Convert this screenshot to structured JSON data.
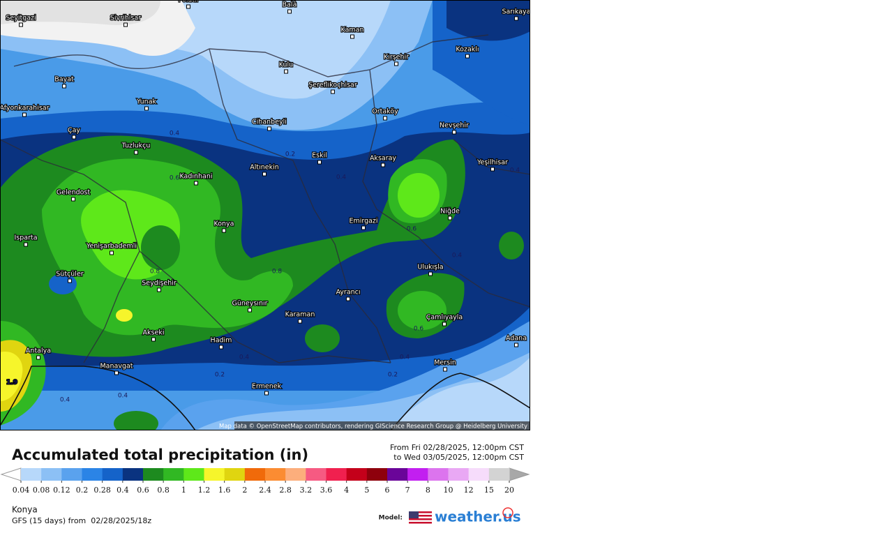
{
  "map": {
    "cities": [
      "Polatlı",
      "Balâ",
      "Sarıkaya",
      "Seyitgazi",
      "Sivrihisar",
      "Kaman",
      "Kozaklı",
      "Kırşehir",
      "Kulu",
      "Bayat",
      "Şereflikoçhisar",
      "Yunak",
      "Afyonkarahisar",
      "Ortaköy",
      "Cihanbeyli",
      "Nevşehir",
      "Çay",
      "Tuzlukçu",
      "Eskil",
      "Aksaray",
      "Yeşilhisar",
      "Altınekin",
      "Kadınhani",
      "Gelendost",
      "Konya",
      "Emirgazi",
      "Niğde",
      "Isparta",
      "Yenişarbademli",
      "Ulukışla",
      "Sütçüler",
      "Seydişehir",
      "Güneysınır",
      "Ayrancı",
      "Karaman",
      "Çamlıyayla",
      "Akseki",
      "Hadim",
      "Antalya",
      "Manavgat",
      "Adana",
      "Mersin",
      "Ermenek"
    ],
    "contour_labels": [
      "0.4",
      "0.2",
      "0.4",
      "0.6",
      "0.6",
      "0.8",
      "0.8",
      "0.4",
      "0.6",
      "0.4",
      "0.4",
      "0.2",
      "0.2",
      "0.4",
      "0.4",
      "0.4",
      "1.9"
    ],
    "attribution": "Map data © OpenStreetMap contributors, rendering GIScience Research Group @ Heidelberg University"
  },
  "legend": {
    "title": "Accumulated total precipitation (in)",
    "from": "From Fri 02/28/2025, 12:00pm CST",
    "to": "to Wed 03/05/2025, 12:00pm CST",
    "ticks": [
      0.04,
      0.08,
      0.12,
      0.2,
      0.28,
      0.4,
      0.6,
      0.8,
      1,
      1.2,
      1.6,
      2,
      2.4,
      2.8,
      3.2,
      3.6,
      4,
      5,
      6,
      7,
      8,
      10,
      12,
      15,
      20
    ],
    "colors": [
      "#b7d8fa",
      "#8cc0f5",
      "#5aa2ee",
      "#2b84e6",
      "#1563c9",
      "#0a3380",
      "#1d8a1f",
      "#31b823",
      "#5ee81a",
      "#f6f52b",
      "#e0d510",
      "#f06a0a",
      "#fb8c32",
      "#fcae7c",
      "#f65a82",
      "#f0204f",
      "#c4001a",
      "#8e000c",
      "#6a0599",
      "#c21ff0",
      "#dc74ee",
      "#e9a8f4",
      "#f6dcfb",
      "#d3d3d3"
    ],
    "under_color": "#ffffff",
    "over_color": "#a8a8a8"
  },
  "footer": {
    "location": "Konya",
    "model_run": "GFS (15 days) from  02/28/2025/18z",
    "model_label": "Model:",
    "logo": "weather.us"
  }
}
